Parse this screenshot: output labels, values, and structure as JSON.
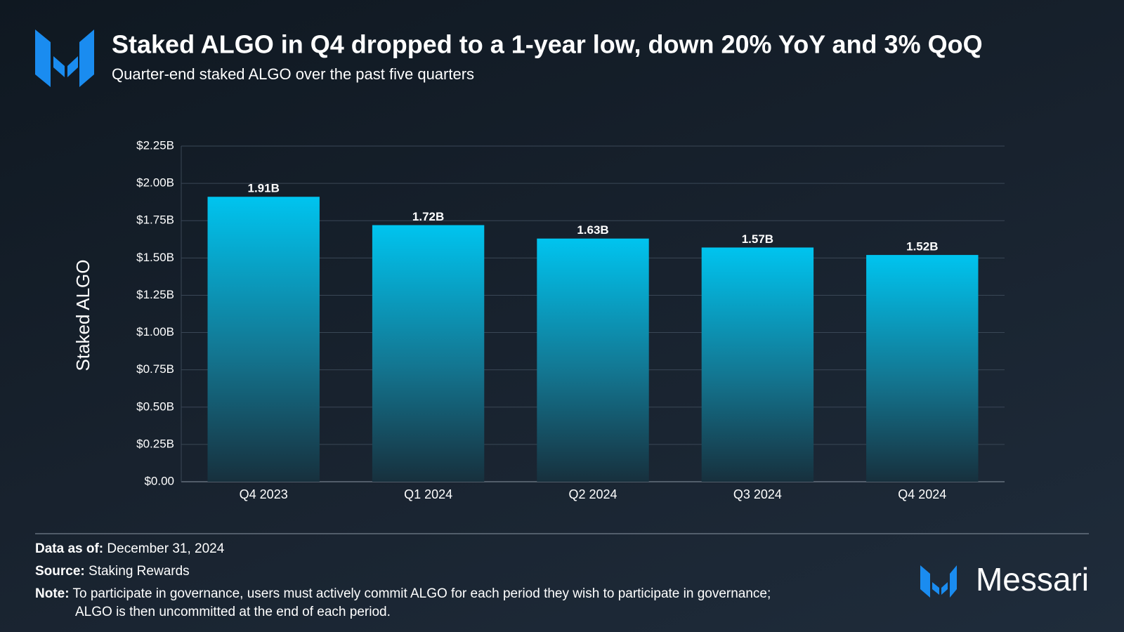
{
  "chart_data": {
    "type": "bar",
    "title": "Staked ALGO in Q4 dropped to a 1-year low, down 20% YoY and 3% QoQ",
    "subtitle": "Quarter-end staked ALGO over the past five quarters",
    "y_label": "Staked ALGO",
    "categories": [
      "Q4 2023",
      "Q1 2024",
      "Q2 2024",
      "Q3 2024",
      "Q4 2024"
    ],
    "values": [
      1.91,
      1.72,
      1.63,
      1.57,
      1.52
    ],
    "value_labels": [
      "1.91B",
      "1.72B",
      "1.63B",
      "1.57B",
      "1.52B"
    ],
    "color": "#00c2ec",
    "ylim": [
      0,
      2.25
    ],
    "yticks": [
      {
        "value": 0,
        "label": "$0.00"
      },
      {
        "value": 0.25,
        "label": "$0.25B"
      },
      {
        "value": 0.5,
        "label": "$0.50B"
      },
      {
        "value": 0.75,
        "label": "$0.75B"
      },
      {
        "value": 1,
        "label": "$1.00B"
      },
      {
        "value": 1.25,
        "label": "$1.25B"
      },
      {
        "value": 1.5,
        "label": "$1.50B"
      },
      {
        "value": 1.75,
        "label": "$1.75B"
      },
      {
        "value": 2,
        "label": "$2.00B"
      },
      {
        "value": 2.25,
        "label": "$2.25B"
      }
    ],
    "grid": true
  },
  "footer": {
    "data_as_of": {
      "label": "Data as of:",
      "text": "December 31, 2024"
    },
    "source": {
      "label": "Source:",
      "text": "Staking Rewards"
    },
    "note": {
      "label": "Note:",
      "lines": [
        "To participate in governance, users must actively commit ALGO for each period they wish to participate in governance;",
        "ALGO is then uncommitted at the end of each period."
      ]
    },
    "brand": "Messari"
  }
}
